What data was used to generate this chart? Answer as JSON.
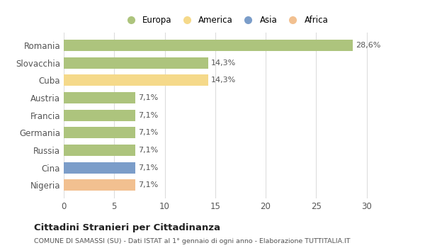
{
  "categories": [
    "Nigeria",
    "Cina",
    "Russia",
    "Germania",
    "Francia",
    "Austria",
    "Cuba",
    "Slovacchia",
    "Romania"
  ],
  "values": [
    7.1,
    7.1,
    7.1,
    7.1,
    7.1,
    7.1,
    14.3,
    14.3,
    28.6
  ],
  "colors": [
    "#f2c090",
    "#7b9dc9",
    "#adc47d",
    "#adc47d",
    "#adc47d",
    "#adc47d",
    "#f5d98a",
    "#adc47d",
    "#adc47d"
  ],
  "labels": [
    "7,1%",
    "7,1%",
    "7,1%",
    "7,1%",
    "7,1%",
    "7,1%",
    "14,3%",
    "14,3%",
    "28,6%"
  ],
  "legend_labels": [
    "Europa",
    "America",
    "Asia",
    "Africa"
  ],
  "legend_colors": [
    "#adc47d",
    "#f5d98a",
    "#7b9dc9",
    "#f2c090"
  ],
  "xlim": [
    0,
    32
  ],
  "xticks": [
    0,
    5,
    10,
    15,
    20,
    25,
    30
  ],
  "title": "Cittadini Stranieri per Cittadinanza",
  "subtitle": "COMUNE DI SAMASSI (SU) - Dati ISTAT al 1° gennaio di ogni anno - Elaborazione TUTTITALIA.IT",
  "bg_color": "#ffffff",
  "bar_height": 0.65
}
